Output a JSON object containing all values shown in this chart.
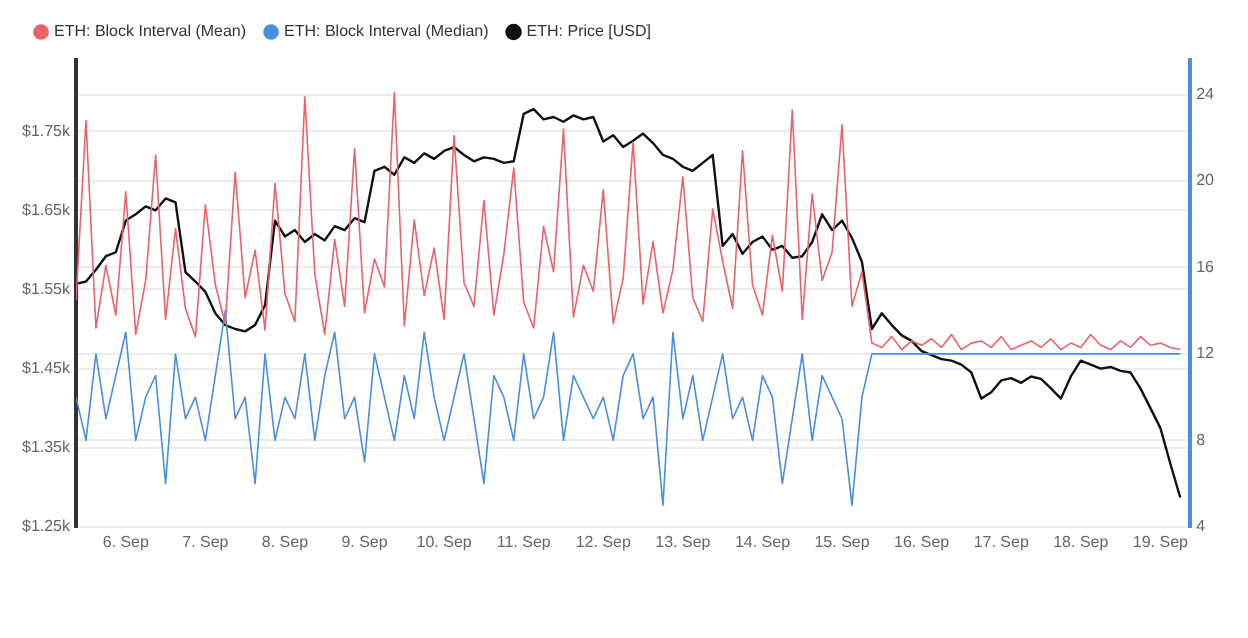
{
  "chart_data": {
    "type": "line",
    "x": [
      "--09-05T09:00",
      "--09-05T12:00",
      "--09-05T15:00",
      "--09-05T18:00",
      "--09-05T21:00",
      "--09-06T00:00",
      "--09-06T03:00",
      "--09-06T06:00",
      "--09-06T09:00",
      "--09-06T12:00",
      "--09-06T15:00",
      "--09-06T18:00",
      "--09-06T21:00",
      "--09-07T00:00",
      "--09-07T03:00",
      "--09-07T06:00",
      "--09-07T09:00",
      "--09-07T12:00",
      "--09-07T15:00",
      "--09-07T18:00",
      "--09-07T21:00",
      "--09-08T00:00",
      "--09-08T03:00",
      "--09-08T06:00",
      "--09-08T09:00",
      "--09-08T12:00",
      "--09-08T15:00",
      "--09-08T18:00",
      "--09-08T21:00",
      "--09-09T00:00",
      "--09-09T03:00",
      "--09-09T06:00",
      "--09-09T09:00",
      "--09-09T12:00",
      "--09-09T15:00",
      "--09-09T18:00",
      "--09-09T21:00",
      "--09-10T00:00",
      "--09-10T03:00",
      "--09-10T06:00",
      "--09-10T09:00",
      "--09-10T12:00",
      "--09-10T15:00",
      "--09-10T18:00",
      "--09-10T21:00",
      "--09-11T00:00",
      "--09-11T03:00",
      "--09-11T06:00",
      "--09-11T09:00",
      "--09-11T12:00",
      "--09-11T15:00",
      "--09-11T18:00",
      "--09-11T21:00",
      "--09-12T00:00",
      "--09-12T03:00",
      "--09-12T06:00",
      "--09-12T09:00",
      "--09-12T12:00",
      "--09-12T15:00",
      "--09-12T18:00",
      "--09-12T21:00",
      "--09-13T00:00",
      "--09-13T03:00",
      "--09-13T06:00",
      "--09-13T09:00",
      "--09-13T12:00",
      "--09-13T15:00",
      "--09-13T18:00",
      "--09-13T21:00",
      "--09-14T00:00",
      "--09-14T03:00",
      "--09-14T06:00",
      "--09-14T09:00",
      "--09-14T12:00",
      "--09-14T15:00",
      "--09-14T18:00",
      "--09-14T21:00",
      "--09-15T00:00",
      "--09-15T03:00",
      "--09-15T06:00",
      "--09-15T09:00",
      "--09-15T12:00",
      "--09-15T15:00",
      "--09-15T18:00",
      "--09-15T21:00",
      "--09-16T00:00",
      "--09-16T03:00",
      "--09-16T06:00",
      "--09-16T09:00",
      "--09-16T12:00",
      "--09-16T15:00",
      "--09-16T18:00",
      "--09-16T21:00",
      "--09-17T00:00",
      "--09-17T03:00",
      "--09-17T06:00",
      "--09-17T09:00",
      "--09-17T12:00",
      "--09-17T15:00",
      "--09-17T18:00",
      "--09-17T21:00",
      "--09-18T00:00",
      "--09-18T03:00",
      "--09-18T06:00",
      "--09-18T09:00",
      "--09-18T12:00",
      "--09-18T15:00",
      "--09-18T18:00",
      "--09-18T21:00",
      "--09-19T00:00",
      "--09-19T03:00",
      "--09-19T06:00"
    ],
    "series": [
      {
        "name": "ETH: Block Interval (Mean)",
        "color": "#e8636a",
        "axis": "y2",
        "values": [
          14.5,
          22.8,
          13.2,
          16.1,
          13.8,
          19.5,
          12.9,
          15.4,
          21.2,
          13.6,
          17.8,
          14.1,
          12.8,
          18.9,
          15.2,
          13.4,
          20.4,
          14.6,
          16.8,
          13.1,
          19.9,
          14.8,
          13.5,
          23.9,
          15.7,
          12.9,
          17.3,
          14.2,
          21.5,
          13.9,
          16.4,
          15.1,
          24.1,
          13.3,
          18.2,
          14.7,
          16.9,
          13.6,
          22.1,
          15.3,
          14.2,
          19.1,
          13.8,
          16.6,
          20.6,
          14.4,
          13.2,
          17.9,
          15.8,
          22.4,
          13.7,
          16.1,
          14.9,
          19.6,
          13.4,
          15.5,
          21.8,
          14.3,
          17.2,
          13.9,
          15.9,
          20.2,
          14.6,
          13.5,
          18.7,
          16.3,
          14.1,
          21.4,
          15.2,
          13.8,
          17.5,
          14.9,
          23.3,
          13.6,
          19.4,
          15.4,
          16.7,
          22.6,
          14.2,
          15.8,
          12.5,
          12.3,
          12.8,
          12.2,
          12.6,
          12.4,
          12.7,
          12.3,
          12.9,
          12.2,
          12.5,
          12.6,
          12.3,
          12.8,
          12.2,
          12.4,
          12.6,
          12.3,
          12.7,
          12.2,
          12.5,
          12.3,
          12.9,
          12.4,
          12.2,
          12.6,
          12.3,
          12.8,
          12.4,
          12.5,
          12.3,
          12.2
        ]
      },
      {
        "name": "ETH: Block Interval (Median)",
        "color": "#4a8fdf",
        "axis": "y2",
        "values": [
          10,
          8,
          12,
          9,
          11,
          13,
          8,
          10,
          11,
          6,
          12,
          9,
          10,
          8,
          11,
          14,
          9,
          10,
          6,
          12,
          8,
          10,
          9,
          12,
          8,
          11,
          13,
          9,
          10,
          7,
          12,
          10,
          8,
          11,
          9,
          13,
          10,
          8,
          10,
          12,
          9,
          6,
          11,
          10,
          8,
          12,
          9,
          10,
          13,
          8,
          11,
          10,
          9,
          10,
          8,
          11,
          12,
          9,
          10,
          5,
          13,
          9,
          11,
          8,
          10,
          12,
          9,
          10,
          8,
          11,
          10,
          6,
          9,
          12,
          8,
          11,
          10,
          9,
          5,
          10,
          12,
          12,
          12,
          12,
          12,
          12,
          12,
          12,
          12,
          12,
          12,
          12,
          12,
          12,
          12,
          12,
          12,
          12,
          12,
          12,
          12,
          12,
          12,
          12,
          12,
          12,
          12,
          12,
          12,
          12,
          12,
          12
        ]
      },
      {
        "name": "ETH: Price [USD]",
        "color": "#111111",
        "values": [
          1557,
          1560,
          1575,
          1592,
          1597,
          1637,
          1645,
          1655,
          1650,
          1665,
          1660,
          1572,
          1560,
          1547,
          1520,
          1505,
          1500,
          1497,
          1505,
          1530,
          1637,
          1617,
          1625,
          1610,
          1620,
          1612,
          1630,
          1625,
          1640,
          1635,
          1700,
          1705,
          1695,
          1717,
          1710,
          1722,
          1715,
          1725,
          1730,
          1720,
          1712,
          1717,
          1715,
          1710,
          1712,
          1772,
          1778,
          1765,
          1768,
          1762,
          1770,
          1765,
          1768,
          1737,
          1745,
          1730,
          1738,
          1747,
          1735,
          1720,
          1715,
          1705,
          1700,
          1710,
          1720,
          1605,
          1620,
          1595,
          1610,
          1617,
          1600,
          1605,
          1590,
          1592,
          1610,
          1645,
          1625,
          1637,
          1615,
          1585,
          1500,
          1520,
          1505,
          1492,
          1485,
          1472,
          1467,
          1462,
          1460,
          1455,
          1445,
          1412,
          1420,
          1435,
          1438,
          1432,
          1440,
          1437,
          1425,
          1412,
          1440,
          1460,
          1455,
          1450,
          1452,
          1447,
          1445,
          1425,
          1400,
          1375,
          1330,
          1287
        ]
      }
    ],
    "xlim": [
      "--09-05T09:00",
      "--09-19T09:00"
    ],
    "xticks": [
      {
        "value": "--09-06",
        "label": "6. Sep"
      },
      {
        "value": "--09-07",
        "label": "7. Sep"
      },
      {
        "value": "--09-08",
        "label": "8. Sep"
      },
      {
        "value": "--09-09",
        "label": "9. Sep"
      },
      {
        "value": "--09-10",
        "label": "10. Sep"
      },
      {
        "value": "--09-11",
        "label": "11. Sep"
      },
      {
        "value": "--09-12",
        "label": "12. Sep"
      },
      {
        "value": "--09-13",
        "label": "13. Sep"
      },
      {
        "value": "--09-14",
        "label": "14. Sep"
      },
      {
        "value": "--09-15",
        "label": "15. Sep"
      },
      {
        "value": "--09-16",
        "label": "16. Sep"
      },
      {
        "value": "--09-17",
        "label": "17. Sep"
      },
      {
        "value": "--09-18",
        "label": "18. Sep"
      },
      {
        "value": "--09-19",
        "label": "19. Sep"
      }
    ],
    "ylim": [
      1250,
      1840
    ],
    "yticks": [
      {
        "value": 1250,
        "label": "$1.25k"
      },
      {
        "value": 1350,
        "label": "$1.35k"
      },
      {
        "value": 1450,
        "label": "$1.45k"
      },
      {
        "value": 1550,
        "label": "$1.55k"
      },
      {
        "value": 1650,
        "label": "$1.65k"
      },
      {
        "value": 1750,
        "label": "$1.75k"
      }
    ],
    "y2lim": [
      4,
      25.6
    ],
    "y2ticks": [
      4,
      8,
      12,
      16,
      20,
      24
    ],
    "grid": "y",
    "legend": "top left",
    "marker": "none",
    "line_style": "solid"
  }
}
